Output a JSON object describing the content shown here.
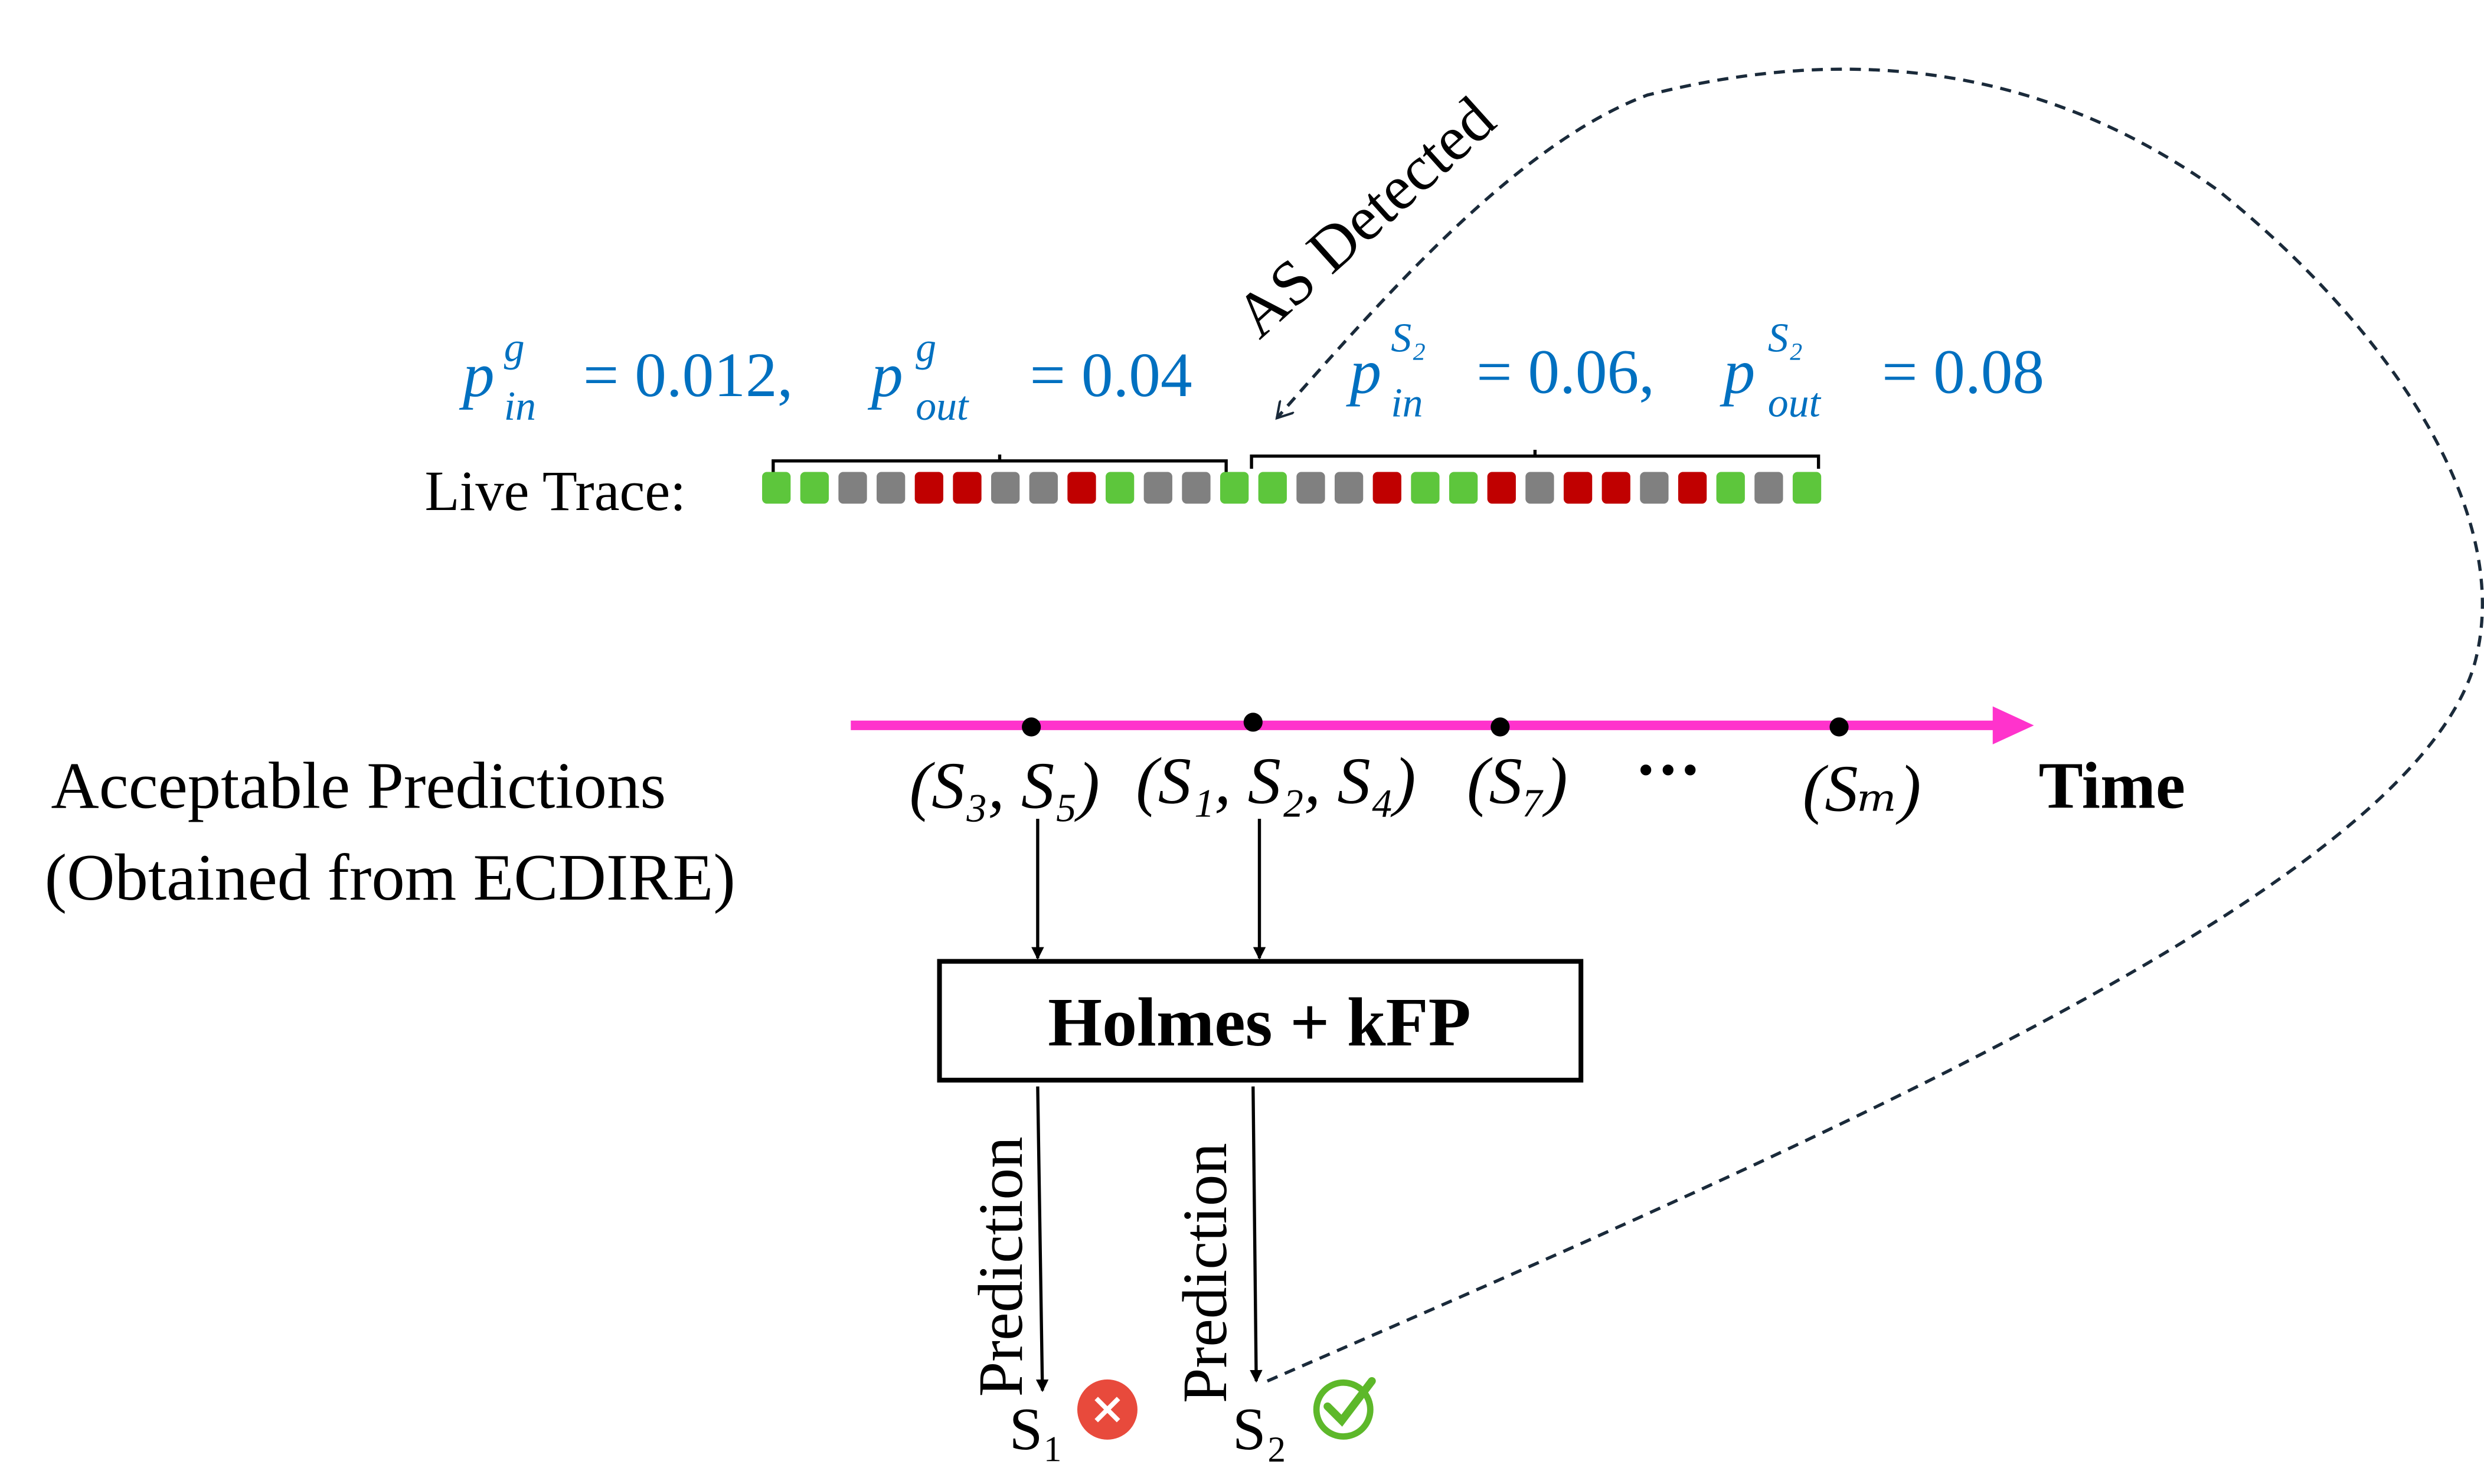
{
  "annotation": {
    "as_detected": "AS Detected"
  },
  "probabilities": {
    "guard": {
      "p_in_sup": "g",
      "p_in_sub": "in",
      "p_in_value": "= 0.012,",
      "p_out_sup": "g",
      "p_out_sub": "out",
      "p_out_value": "= 0.04"
    },
    "site": {
      "p_in_sup": "S₂",
      "p_in_sub": "in",
      "p_in_value": "= 0.06,",
      "p_out_sup": "S₂",
      "p_out_sub": "out",
      "p_out_value": "= 0.08"
    }
  },
  "live_trace": {
    "label": "Live Trace:",
    "cells": [
      "G",
      "G",
      "Gr",
      "Gr",
      "R",
      "R",
      "Gr",
      "Gr",
      "R",
      "G",
      "Gr",
      "Gr",
      "G",
      "G",
      "Gr",
      "Gr",
      "R",
      "G",
      "G",
      "R",
      "Gr",
      "R",
      "R",
      "Gr",
      "R",
      "G",
      "Gr",
      "G"
    ],
    "colors": {
      "G": "#5DC63C",
      "Gr": "#808080",
      "R": "#C00000"
    }
  },
  "timeline": {
    "axis_label": "Time",
    "axis_color": "#FF33CC",
    "groups": [
      "(S₃, S₅)",
      "(S₁, S₂, S₄)",
      "(S₇)",
      "···",
      "(Sₘ)"
    ]
  },
  "left_label": {
    "line1": "Acceptable Predictions",
    "line2": "(Obtained from ECDIRE)"
  },
  "classifier": {
    "label": "Holmes + kFP"
  },
  "predictions": [
    {
      "label": "Prediction",
      "site": "S₁",
      "status": "wrong",
      "icon": "x-circle-icon",
      "color": "#E84A3C"
    },
    {
      "label": "Prediction",
      "site": "S₂",
      "status": "correct",
      "icon": "check-circle-icon",
      "color": "#5DB82A"
    }
  ]
}
